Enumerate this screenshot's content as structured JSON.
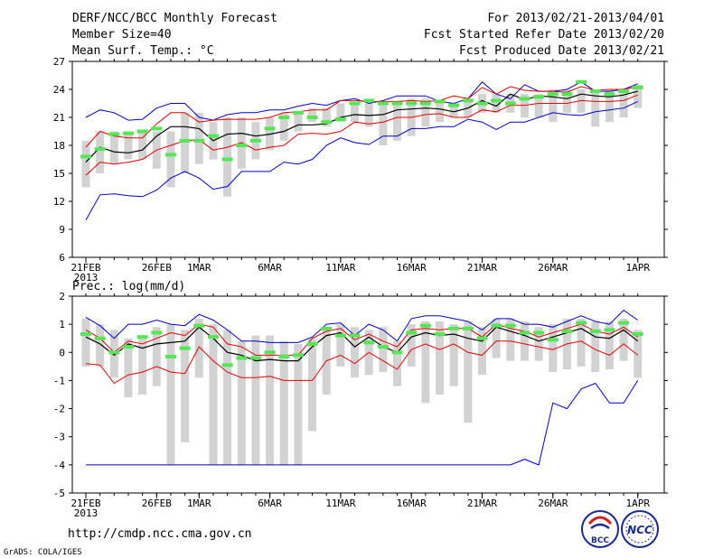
{
  "header": {
    "title": "DERF/NCC/BCC Monthly Forecast",
    "member_size": "Member Size=40",
    "variable1": "Mean Surf. Temp.: °C",
    "period": "For 2013/02/21-2013/04/01",
    "refer_date": "Fcst Started Refer Date 2013/02/20",
    "produced_date": "Fcst Produced Date 2013/02/21"
  },
  "footer": {
    "url": "http://cmdp.ncc.cma.gov.cn",
    "grads": "GrADS: COLA/IGES",
    "logo_bcc": "BCC",
    "logo_ncc": "NCC"
  },
  "colors": {
    "box": "#d2d2d2",
    "median": "#55e655",
    "mean": "#000000",
    "std": "#e60000",
    "range": "#0000c8"
  },
  "chart_data": [
    {
      "type": "box",
      "title": "Mean Surf. Temp.: °C",
      "ylim": [
        6,
        27
      ],
      "yticks": [
        "6",
        "9",
        "12",
        "15",
        "18",
        "21",
        "24",
        "27"
      ],
      "ytick_values": [
        6,
        9,
        12,
        15,
        18,
        21,
        24,
        27
      ],
      "xtick_labels": [
        "21FEB",
        "26FEB",
        "1MAR",
        "6MAR",
        "11MAR",
        "16MAR",
        "21MAR",
        "26MAR",
        "1APR"
      ],
      "xtick_days": [
        0,
        5,
        8,
        13,
        18,
        23,
        28,
        33,
        39
      ],
      "xyear": "2013",
      "days": 40,
      "series": {
        "box_low": [
          13.5,
          15.0,
          16.0,
          16.5,
          16.5,
          15.5,
          13.5,
          15.0,
          16.0,
          16.5,
          12.5,
          15.5,
          16.5,
          17.5,
          18.5,
          19.5,
          20.5,
          20.0,
          20.5,
          20.5,
          20.0,
          18.0,
          18.5,
          19.0,
          20.0,
          20.5,
          21.0,
          21.0,
          21.5,
          21.5,
          21.5,
          21.0,
          21.0,
          20.5,
          21.5,
          21.5,
          20.0,
          20.5,
          21.0,
          22.0
        ],
        "box_high": [
          18.5,
          19.5,
          19.5,
          19.5,
          19.5,
          19.5,
          19.5,
          21.5,
          21.5,
          20.5,
          21.0,
          21.0,
          20.5,
          21.0,
          21.5,
          21.5,
          22.0,
          22.0,
          22.5,
          22.5,
          22.5,
          22.5,
          22.5,
          23.0,
          23.0,
          22.5,
          22.5,
          23.0,
          23.5,
          23.5,
          23.5,
          23.5,
          23.5,
          24.0,
          24.0,
          24.0,
          24.0,
          24.0,
          24.0,
          24.5
        ],
        "median": [
          16.8,
          17.6,
          19.2,
          19.3,
          19.5,
          19.8,
          17.0,
          18.5,
          18.5,
          19.0,
          16.5,
          18.0,
          18.5,
          19.8,
          21.0,
          21.5,
          21.0,
          20.5,
          20.8,
          22.5,
          22.8,
          22.5,
          22.5,
          22.5,
          22.5,
          22.7,
          22.3,
          22.8,
          22.5,
          22.8,
          22.5,
          23.0,
          23.2,
          23.5,
          23.5,
          24.8,
          23.8,
          23.5,
          23.8,
          24.2
        ],
        "mean": [
          16.2,
          17.8,
          17.3,
          17.2,
          17.5,
          19.0,
          20.0,
          20.0,
          19.8,
          18.5,
          19.2,
          19.3,
          19.0,
          19.2,
          19.5,
          20.2,
          20.2,
          20.3,
          21.0,
          21.3,
          21.2,
          21.3,
          21.8,
          21.9,
          22.0,
          21.9,
          21.6,
          22.0,
          22.8,
          22.2,
          23.5,
          22.9,
          23.3,
          23.2,
          23.0,
          23.5,
          23.3,
          23.2,
          23.4,
          23.8
        ],
        "std_upper": [
          17.8,
          19.5,
          19.0,
          18.8,
          18.8,
          20.3,
          21.5,
          21.5,
          20.5,
          20.7,
          20.8,
          20.8,
          20.8,
          21.0,
          21.5,
          21.6,
          21.8,
          21.8,
          22.8,
          22.8,
          22.7,
          22.7,
          22.7,
          22.8,
          22.7,
          22.8,
          23.3,
          23.0,
          24.2,
          23.5,
          24.3,
          23.9,
          23.8,
          23.8,
          23.7,
          24.3,
          23.9,
          24.0,
          24.0,
          24.3
        ],
        "std_lower": [
          14.8,
          16.2,
          16.0,
          16.2,
          16.5,
          17.5,
          18.0,
          18.5,
          18.6,
          17.5,
          17.8,
          18.3,
          17.5,
          17.8,
          18.0,
          19.2,
          19.3,
          19.2,
          19.5,
          20.5,
          20.3,
          20.5,
          21.0,
          21.0,
          21.3,
          21.4,
          21.0,
          21.0,
          21.8,
          21.6,
          22.3,
          22.3,
          22.5,
          22.5,
          22.5,
          22.8,
          22.7,
          22.7,
          22.8,
          23.4
        ],
        "max": [
          21.0,
          21.8,
          21.5,
          20.7,
          20.8,
          22.0,
          22.5,
          22.5,
          21.0,
          20.7,
          21.3,
          21.5,
          21.5,
          21.8,
          21.8,
          22.2,
          22.5,
          22.3,
          22.8,
          23.0,
          22.5,
          22.8,
          23.3,
          23.3,
          23.3,
          22.7,
          22.5,
          23.0,
          24.8,
          23.5,
          23.0,
          24.5,
          23.8,
          23.8,
          24.0,
          24.8,
          23.8,
          23.8,
          24.0,
          24.6
        ],
        "min": [
          10.0,
          12.7,
          12.8,
          12.6,
          12.5,
          13.2,
          14.5,
          15.2,
          14.5,
          13.3,
          13.6,
          15.2,
          15.2,
          15.2,
          16.2,
          16.0,
          16.5,
          18.0,
          18.8,
          18.3,
          18.1,
          19.0,
          19.0,
          19.8,
          19.8,
          20.0,
          20.0,
          20.8,
          20.5,
          19.7,
          20.5,
          20.5,
          21.0,
          21.5,
          21.3,
          21.2,
          21.6,
          21.8,
          22.0,
          22.7
        ]
      }
    },
    {
      "type": "box",
      "title": "Prec.: log(mm/d)",
      "ylim": [
        -5,
        2
      ],
      "yticks": [
        "-5",
        "-4",
        "-3",
        "-2",
        "-1",
        "0",
        "1",
        "2"
      ],
      "ytick_values": [
        -5,
        -4,
        -3,
        -2,
        -1,
        0,
        1,
        2
      ],
      "xtick_labels": [
        "21FEB",
        "26FEB",
        "1MAR",
        "6MAR",
        "11MAR",
        "16MAR",
        "21MAR",
        "26MAR",
        "1APR"
      ],
      "xtick_days": [
        0,
        5,
        8,
        13,
        18,
        23,
        28,
        33,
        39
      ],
      "xyear": "2013",
      "days": 40,
      "series": {
        "box_low": [
          -0.5,
          -0.5,
          -0.9,
          -1.6,
          -1.5,
          -1.2,
          -4.0,
          -3.2,
          -0.9,
          -4.0,
          -4.0,
          -4.0,
          -4.0,
          -4.0,
          -4.0,
          -4.0,
          -2.8,
          -1.5,
          -0.5,
          -0.9,
          -0.8,
          -0.7,
          -1.2,
          -0.5,
          -1.8,
          -1.5,
          -1.2,
          -2.5,
          -0.8,
          -0.2,
          -0.3,
          -0.3,
          -0.3,
          -0.7,
          -0.6,
          -0.5,
          -0.7,
          -0.6,
          -0.3,
          -0.9
        ],
        "box_high": [
          1.2,
          1.0,
          0.8,
          0.5,
          0.6,
          0.9,
          1.0,
          0.8,
          1.2,
          1.0,
          0.8,
          0.4,
          0.6,
          0.6,
          0.4,
          0.3,
          0.5,
          0.8,
          1.0,
          0.9,
          0.8,
          0.9,
          0.4,
          1.0,
          1.1,
          1.1,
          1.0,
          1.1,
          0.9,
          1.2,
          1.2,
          1.1,
          0.9,
          1.0,
          1.2,
          1.2,
          1.1,
          1.1,
          1.2,
          0.8
        ],
        "median": [
          0.65,
          0.5,
          0.0,
          0.2,
          0.55,
          0.7,
          -0.15,
          0.15,
          0.95,
          0.55,
          -0.45,
          -0.2,
          -0.2,
          0.0,
          -0.15,
          -0.1,
          0.3,
          0.85,
          0.6,
          0.6,
          0.35,
          0.2,
          0.0,
          0.7,
          0.95,
          0.65,
          0.85,
          0.85,
          0.5,
          0.95,
          0.95,
          0.7,
          0.7,
          0.45,
          0.75,
          1.05,
          0.75,
          0.8,
          1.05,
          0.65
        ],
        "mean": [
          0.55,
          0.3,
          -0.1,
          0.3,
          0.15,
          0.3,
          0.35,
          0.4,
          0.9,
          0.5,
          0.0,
          -0.1,
          -0.3,
          -0.25,
          -0.3,
          -0.3,
          0.2,
          0.6,
          0.7,
          0.2,
          0.55,
          0.2,
          0.0,
          0.55,
          0.7,
          0.6,
          0.65,
          0.5,
          0.4,
          0.9,
          0.75,
          0.6,
          0.4,
          0.55,
          0.7,
          0.85,
          0.55,
          0.5,
          0.8,
          0.4
        ],
        "std_upper": [
          0.8,
          0.5,
          0.0,
          0.4,
          0.3,
          0.5,
          0.7,
          0.6,
          1.0,
          0.9,
          0.3,
          0.2,
          -0.1,
          -0.1,
          -0.1,
          -0.1,
          0.5,
          0.75,
          0.85,
          0.45,
          0.65,
          0.4,
          0.2,
          0.8,
          0.85,
          0.8,
          0.85,
          0.85,
          0.55,
          1.0,
          0.85,
          0.75,
          0.55,
          0.7,
          0.85,
          1.0,
          0.75,
          0.65,
          0.9,
          0.55
        ],
        "std_lower": [
          -0.4,
          -0.45,
          -1.1,
          -0.8,
          -0.7,
          -0.5,
          -0.7,
          -0.75,
          0.2,
          -0.3,
          -0.7,
          -0.9,
          -0.9,
          -0.85,
          -1.0,
          -1.0,
          -1.0,
          -0.3,
          -0.1,
          -0.4,
          0.0,
          -0.3,
          -0.6,
          0.1,
          0.3,
          0.1,
          0.3,
          0.0,
          -0.1,
          0.4,
          0.4,
          0.3,
          0.2,
          0.1,
          0.3,
          0.4,
          0.1,
          -0.1,
          0.3,
          -0.1
        ],
        "max": [
          1.25,
          0.95,
          0.5,
          1.0,
          1.0,
          1.15,
          1.0,
          0.95,
          1.35,
          1.15,
          0.8,
          0.4,
          0.4,
          0.35,
          0.35,
          0.35,
          0.55,
          1.0,
          1.05,
          0.6,
          1.0,
          0.8,
          0.4,
          1.2,
          1.3,
          1.3,
          1.2,
          1.1,
          0.8,
          1.2,
          1.2,
          1.0,
          1.0,
          0.9,
          1.1,
          1.3,
          1.1,
          1.0,
          1.5,
          1.15
        ],
        "min": [
          -4.0,
          -4.0,
          -4.0,
          -4.0,
          -4.0,
          -4.0,
          -4.0,
          -4.0,
          -4.0,
          -4.0,
          -4.0,
          -4.0,
          -4.0,
          -4.0,
          -4.0,
          -4.0,
          -4.0,
          -4.0,
          -4.0,
          -4.0,
          -4.0,
          -4.0,
          -4.0,
          -4.0,
          -4.0,
          -4.0,
          -4.0,
          -4.0,
          -4.0,
          -4.0,
          -4.0,
          -3.8,
          -4.0,
          -1.8,
          -2.0,
          -1.3,
          -1.1,
          -1.8,
          -1.8,
          -1.0
        ]
      }
    }
  ]
}
